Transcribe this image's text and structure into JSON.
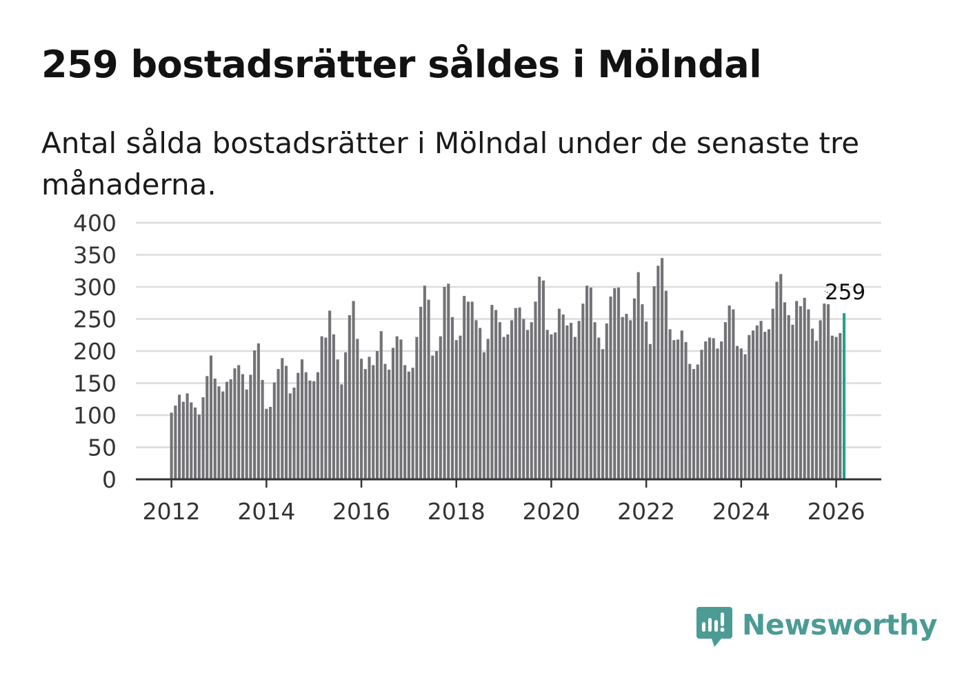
{
  "header": {
    "title": "259 bostadsrätter såldes i Mölndal",
    "subtitle": "Antal sålda bostadsrätter i Mölndal under de senaste tre månaderna."
  },
  "brand": {
    "name": "Newsworthy",
    "icon": "newsworthy-logo-icon",
    "color": "#4c9b95"
  },
  "chart_data": {
    "type": "bar",
    "title": "259 bostadsrätter såldes i Mölndal",
    "subtitle": "Antal sålda bostadsrätter i Mölndal under de senaste tre månaderna.",
    "xlabel": "",
    "ylabel": "",
    "ylim": [
      0,
      400
    ],
    "yticks": [
      0,
      50,
      100,
      150,
      200,
      250,
      300,
      350,
      400
    ],
    "xlim": [
      2011.25,
      2026.95
    ],
    "xticks": [
      2012,
      2014,
      2016,
      2018,
      2020,
      2022,
      2024,
      2026
    ],
    "x_start": 2012,
    "period": "monthly, rolling three months",
    "grid": true,
    "bar_color": "#737276",
    "highlight_color": "#2a9d8f",
    "highlight_label": "259",
    "values": [
      104,
      115,
      132,
      121,
      134,
      120,
      112,
      101,
      128,
      161,
      193,
      157,
      145,
      137,
      152,
      156,
      173,
      178,
      164,
      140,
      163,
      201,
      212,
      155,
      110,
      113,
      151,
      172,
      189,
      177,
      134,
      143,
      166,
      187,
      167,
      154,
      153,
      167,
      223,
      221,
      263,
      226,
      187,
      148,
      198,
      256,
      278,
      219,
      188,
      172,
      191,
      178,
      200,
      231,
      180,
      171,
      205,
      223,
      218,
      178,
      168,
      174,
      222,
      269,
      302,
      280,
      193,
      200,
      223,
      300,
      305,
      253,
      217,
      224,
      286,
      277,
      277,
      248,
      236,
      198,
      219,
      272,
      264,
      245,
      222,
      226,
      248,
      267,
      268,
      250,
      233,
      245,
      277,
      316,
      310,
      233,
      226,
      229,
      266,
      257,
      240,
      244,
      222,
      247,
      274,
      302,
      299,
      245,
      221,
      203,
      243,
      285,
      298,
      299,
      253,
      258,
      248,
      282,
      323,
      273,
      246,
      211,
      301,
      333,
      345,
      294,
      234,
      217,
      218,
      232,
      214,
      180,
      172,
      179,
      202,
      215,
      221,
      220,
      204,
      215,
      245,
      271,
      265,
      208,
      204,
      195,
      225,
      232,
      240,
      247,
      230,
      234,
      266,
      308,
      320,
      276,
      256,
      241,
      278,
      270,
      283,
      265,
      235,
      216,
      248,
      274,
      273,
      224,
      222,
      228,
      259
    ]
  }
}
